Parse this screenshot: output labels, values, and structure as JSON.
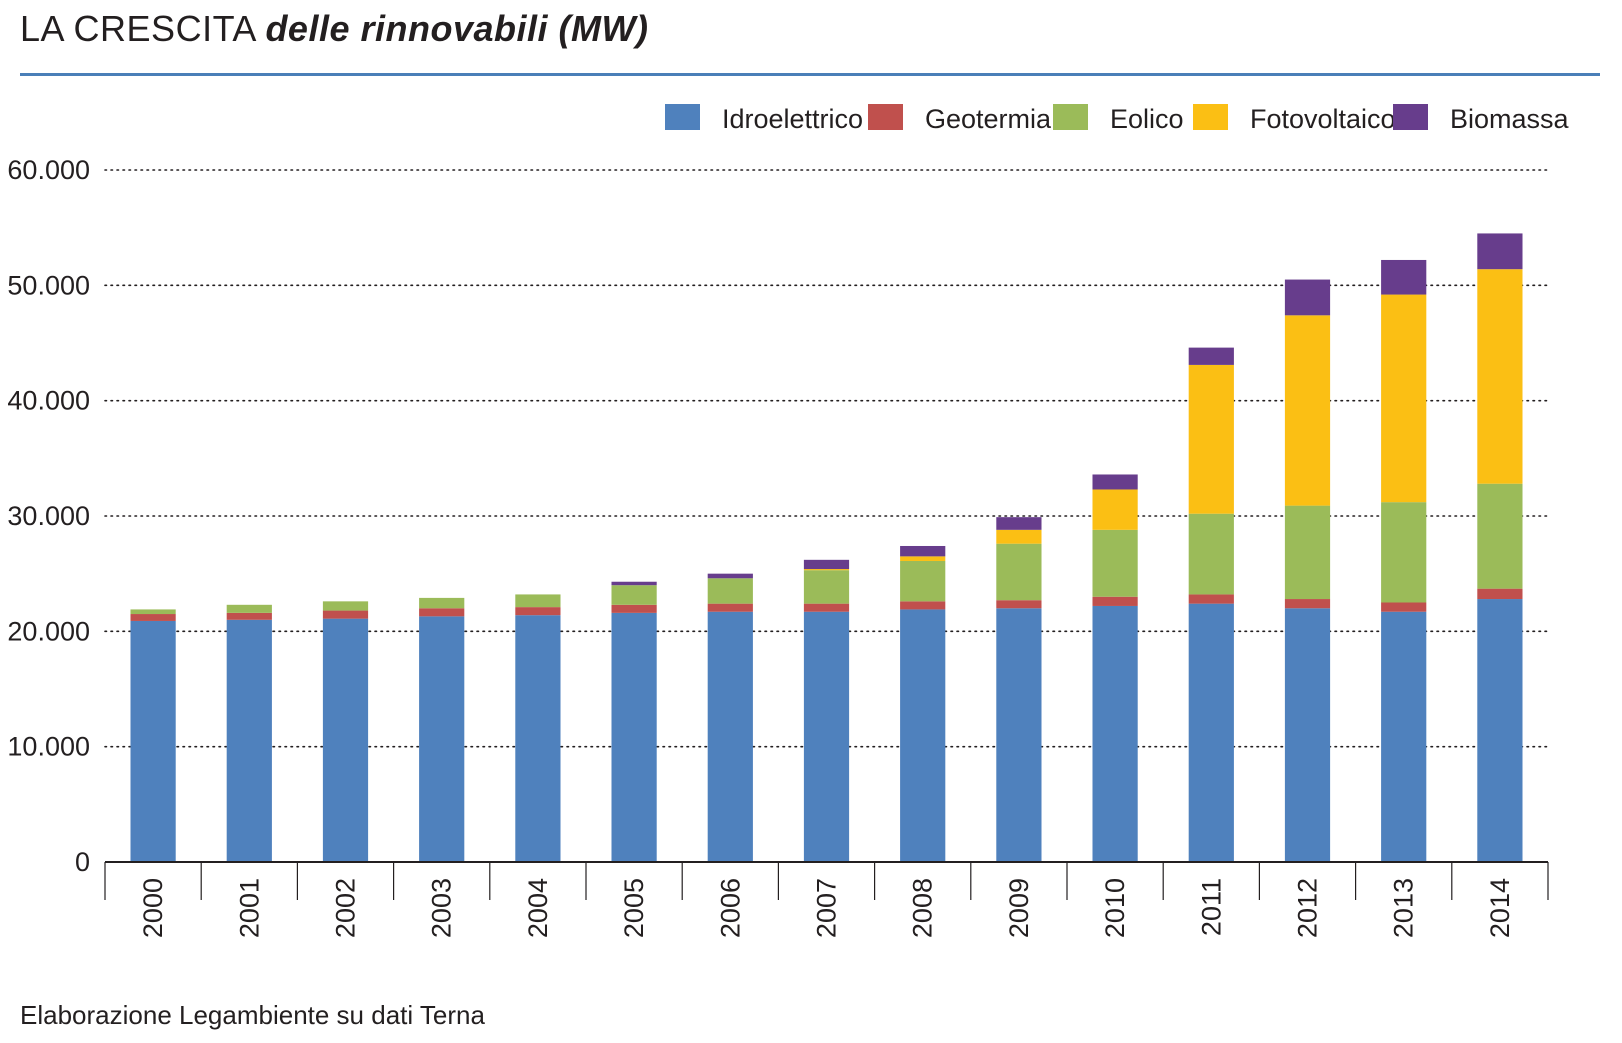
{
  "header": {
    "title_main": "LA CRESCITA",
    "title_sub": "delle rinnovabili (MW)"
  },
  "footer": {
    "source": "Elaborazione Legambiente su dati Terna"
  },
  "chart_data": {
    "type": "bar",
    "stacked": true,
    "title": "LA CRESCITA delle rinnovabili (MW)",
    "xlabel": "",
    "ylabel": "",
    "ylim": [
      0,
      60000
    ],
    "yticks": [
      0,
      10000,
      20000,
      30000,
      40000,
      50000,
      60000
    ],
    "ytick_labels": [
      "0",
      "10.000",
      "20.000",
      "30.000",
      "40.000",
      "50.000",
      "60.000"
    ],
    "grid": "horizontal dotted",
    "legend_position": "top-right",
    "categories": [
      "2000",
      "2001",
      "2002",
      "2003",
      "2004",
      "2005",
      "2006",
      "2007",
      "2008",
      "2009",
      "2010",
      "2011",
      "2012",
      "2013",
      "2014"
    ],
    "series": [
      {
        "name": "Idroelettrico",
        "color": "#4f81bd",
        "values": [
          20900,
          21000,
          21100,
          21300,
          21400,
          21600,
          21700,
          21700,
          21900,
          22000,
          22200,
          22400,
          22000,
          21700,
          22800
        ]
      },
      {
        "name": "Geotermia",
        "color": "#c0504d",
        "values": [
          600,
          600,
          700,
          700,
          700,
          700,
          700,
          700,
          700,
          700,
          800,
          800,
          800,
          800,
          900
        ]
      },
      {
        "name": "Eolico",
        "color": "#9bbb59",
        "values": [
          400,
          700,
          800,
          900,
          1100,
          1700,
          2200,
          2900,
          3500,
          4900,
          5800,
          7000,
          8100,
          8700,
          9100
        ]
      },
      {
        "name": "Fotovoltaico",
        "color": "#fbbf14",
        "values": [
          0,
          0,
          0,
          0,
          0,
          0,
          0,
          100,
          400,
          1200,
          3500,
          12900,
          16500,
          18000,
          18600
        ]
      },
      {
        "name": "Biomassa",
        "color": "#673d8c",
        "values": [
          0,
          0,
          0,
          0,
          0,
          300,
          400,
          800,
          900,
          1100,
          1300,
          1500,
          3100,
          3000,
          3100
        ]
      }
    ]
  }
}
